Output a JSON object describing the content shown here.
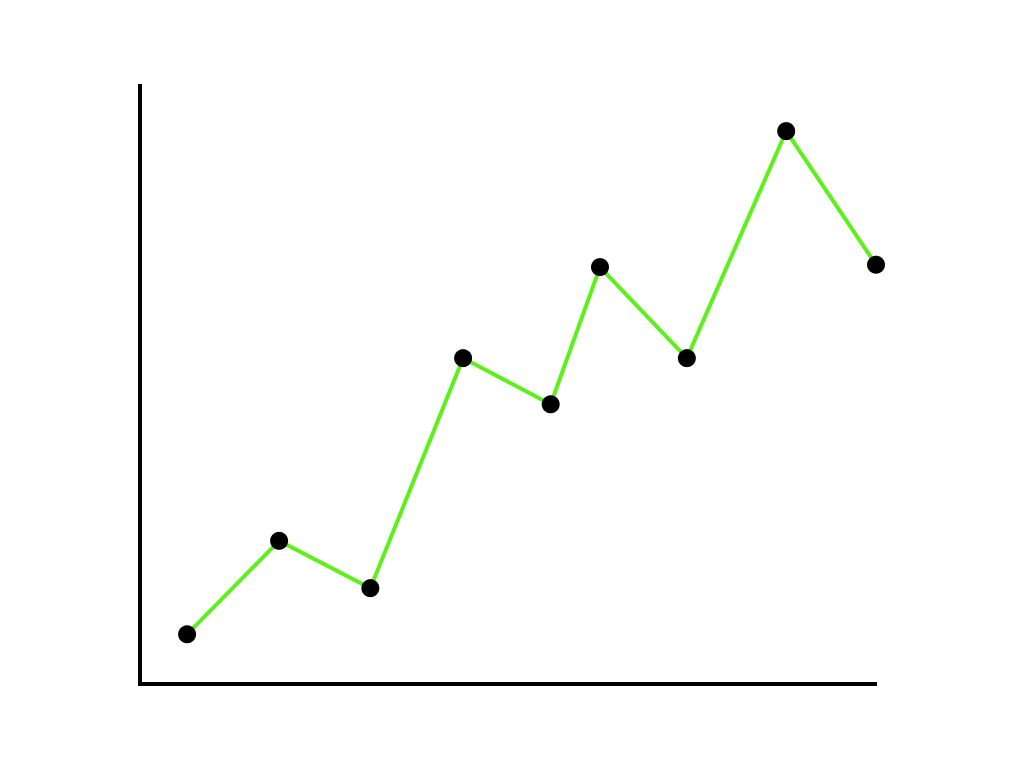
{
  "chart_data": {
    "type": "line",
    "x": [
      6.4,
      18.9,
      31.3,
      43.9,
      55.8,
      62.5,
      74.3,
      87.8,
      100
    ],
    "series": [
      {
        "color": "#5ef01a",
        "marker_color": "#000000",
        "values": [
          8.3,
          23.9,
          16.0,
          54.4,
          46.7,
          69.6,
          54.4,
          92.3,
          70.0
        ]
      }
    ],
    "xlim": [
      0,
      100
    ],
    "ylim": [
      0,
      100
    ],
    "grid": false
  }
}
